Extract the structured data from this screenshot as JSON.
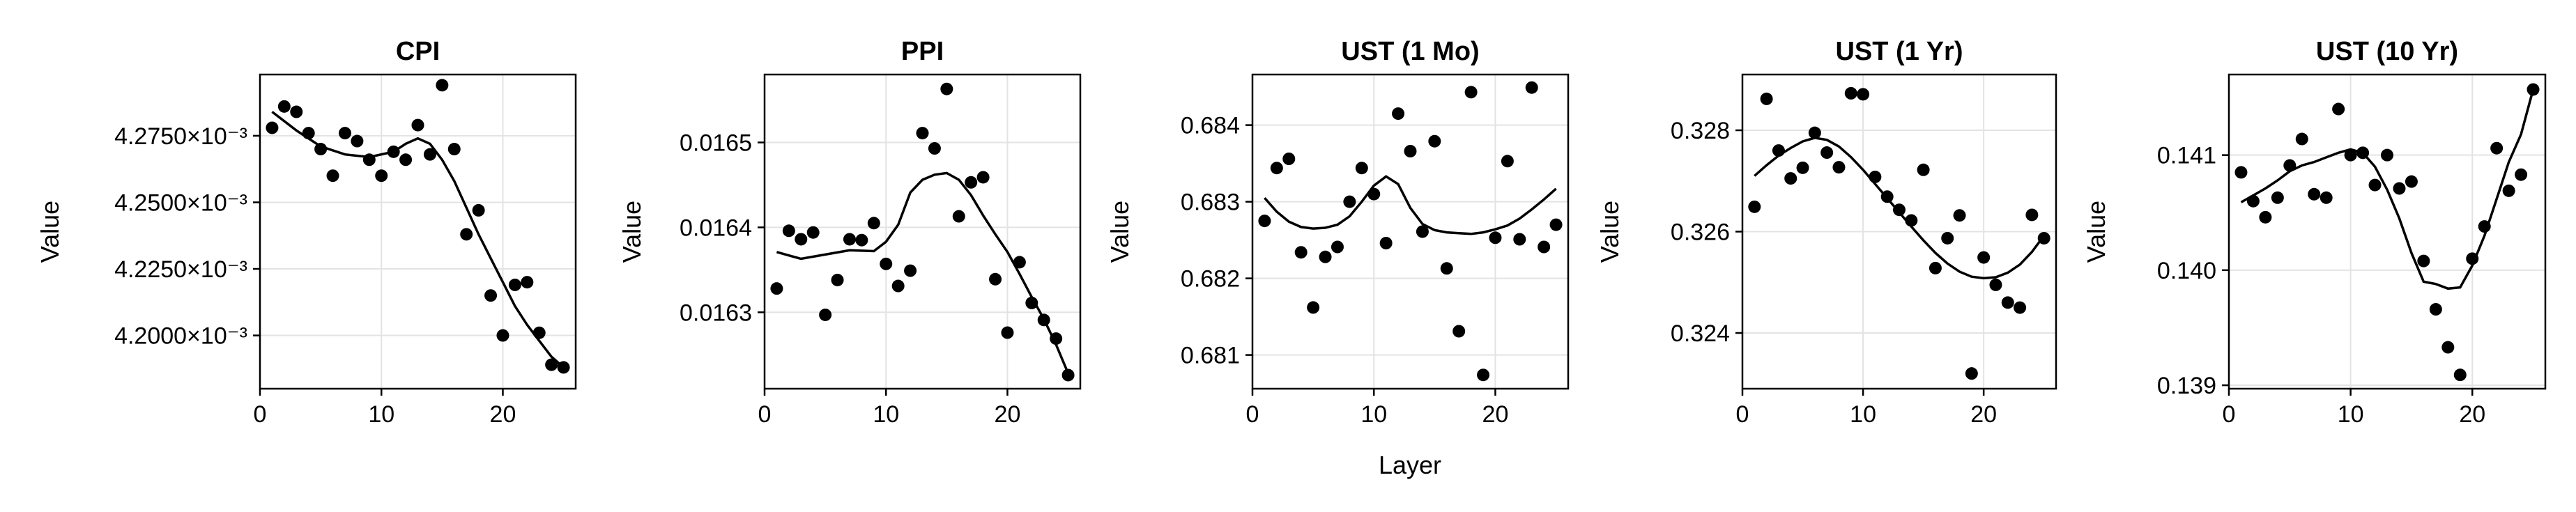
{
  "figure": {
    "xlabel": "Layer"
  },
  "chart_data": [
    {
      "type": "scatter",
      "title": "CPI",
      "ylabel": "Value",
      "xlim": [
        0,
        26
      ],
      "ylim": [
        0.00418,
        0.004298
      ],
      "xticks": [
        0,
        10,
        20
      ],
      "yticks": [
        {
          "value": 0.0042,
          "label": "4.2000×10⁻³"
        },
        {
          "value": 0.004225,
          "label": "4.2250×10⁻³"
        },
        {
          "value": 0.00425,
          "label": "4.2500×10⁻³"
        },
        {
          "value": 0.004275,
          "label": "4.2750×10⁻³"
        }
      ],
      "x": [
        1,
        2,
        3,
        4,
        5,
        6,
        7,
        8,
        9,
        10,
        11,
        12,
        13,
        14,
        15,
        16,
        17,
        18,
        19,
        20,
        21,
        22,
        23,
        24,
        25
      ],
      "y": [
        0.004278,
        0.004286,
        0.004284,
        0.004276,
        0.00427,
        0.00426,
        0.004276,
        0.004273,
        0.004266,
        0.00426,
        0.004269,
        0.004266,
        0.004279,
        0.004268,
        0.004294,
        0.00427,
        0.004238,
        0.004247,
        0.004215,
        0.0042,
        0.004219,
        0.00422,
        0.004201,
        0.004189,
        0.004188
      ],
      "trend_x": [
        1,
        3,
        5,
        7,
        9,
        11,
        12,
        13,
        14,
        15,
        16,
        17,
        18,
        19,
        20,
        21,
        22,
        23,
        24,
        25
      ],
      "trend_y": [
        0.004284,
        0.004277,
        0.004271,
        0.004268,
        0.004267,
        0.004269,
        0.004272,
        0.004274,
        0.004272,
        0.004266,
        0.004258,
        0.004248,
        0.004238,
        0.004229,
        0.00422,
        0.004211,
        0.004204,
        0.004198,
        0.004192,
        0.004188
      ]
    },
    {
      "type": "scatter",
      "title": "PPI",
      "ylabel": "Value",
      "xlim": [
        0,
        26
      ],
      "ylim": [
        0.01621,
        0.01658
      ],
      "xticks": [
        0,
        10,
        20
      ],
      "yticks": [
        {
          "value": 0.0163,
          "label": "0.0163"
        },
        {
          "value": 0.0164,
          "label": "0.0164"
        },
        {
          "value": 0.0165,
          "label": "0.0165"
        }
      ],
      "x": [
        1,
        2,
        3,
        4,
        5,
        6,
        7,
        8,
        9,
        10,
        11,
        12,
        13,
        14,
        15,
        16,
        17,
        18,
        19,
        20,
        21,
        22,
        23,
        24,
        25
      ],
      "y": [
        0.016328,
        0.016396,
        0.016386,
        0.016394,
        0.016297,
        0.016338,
        0.016386,
        0.016385,
        0.016405,
        0.016357,
        0.016331,
        0.016349,
        0.016511,
        0.016493,
        0.016563,
        0.016413,
        0.016453,
        0.016459,
        0.016339,
        0.016276,
        0.016359,
        0.016311,
        0.016291,
        0.016269,
        0.016226
      ],
      "trend_x": [
        1,
        3,
        5,
        7,
        9,
        10,
        11,
        12,
        13,
        14,
        15,
        16,
        17,
        18,
        19,
        20,
        21,
        22,
        23,
        24,
        25
      ],
      "trend_y": [
        0.016371,
        0.016363,
        0.016368,
        0.016373,
        0.016372,
        0.016383,
        0.016403,
        0.016441,
        0.016456,
        0.016462,
        0.016464,
        0.016456,
        0.016438,
        0.016414,
        0.016392,
        0.016371,
        0.016345,
        0.016318,
        0.016292,
        0.016262,
        0.016228
      ]
    },
    {
      "type": "scatter",
      "title": "UST (1 Mo)",
      "ylabel": "Value",
      "xlim": [
        0,
        26
      ],
      "ylim": [
        0.68056,
        0.68466
      ],
      "xticks": [
        0,
        10,
        20
      ],
      "yticks": [
        {
          "value": 0.681,
          "label": "0.681"
        },
        {
          "value": 0.682,
          "label": "0.682"
        },
        {
          "value": 0.683,
          "label": "0.683"
        },
        {
          "value": 0.684,
          "label": "0.684"
        }
      ],
      "x": [
        1,
        2,
        3,
        4,
        5,
        6,
        7,
        8,
        9,
        10,
        11,
        12,
        13,
        14,
        15,
        16,
        17,
        18,
        19,
        20,
        21,
        22,
        23,
        24,
        25
      ],
      "y": [
        0.68275,
        0.68344,
        0.68356,
        0.68234,
        0.68162,
        0.68228,
        0.68241,
        0.683,
        0.68344,
        0.6831,
        0.68246,
        0.68415,
        0.68366,
        0.68261,
        0.68379,
        0.68213,
        0.68131,
        0.68443,
        0.68074,
        0.68253,
        0.68353,
        0.68251,
        0.68449,
        0.68241,
        0.6827
      ],
      "trend_x": [
        1,
        2,
        3,
        4,
        5,
        6,
        7,
        8,
        9,
        10,
        11,
        12,
        13,
        14,
        15,
        16,
        17,
        18,
        19,
        20,
        21,
        22,
        23,
        24,
        25
      ],
      "trend_y": [
        0.68305,
        0.68287,
        0.68274,
        0.68267,
        0.68265,
        0.68266,
        0.6827,
        0.68281,
        0.683,
        0.68321,
        0.68333,
        0.68323,
        0.68292,
        0.68271,
        0.68263,
        0.6826,
        0.68259,
        0.68258,
        0.6826,
        0.68264,
        0.68269,
        0.68278,
        0.6829,
        0.68303,
        0.68317
      ]
    },
    {
      "type": "scatter",
      "title": "UST (1 Yr)",
      "ylabel": "Value",
      "xlim": [
        0,
        26
      ],
      "ylim": [
        0.3229,
        0.3291
      ],
      "xticks": [
        0,
        10,
        20
      ],
      "yticks": [
        {
          "value": 0.324,
          "label": "0.324"
        },
        {
          "value": 0.326,
          "label": "0.326"
        },
        {
          "value": 0.328,
          "label": "0.328"
        }
      ],
      "x": [
        1,
        2,
        3,
        4,
        5,
        6,
        7,
        8,
        9,
        10,
        11,
        12,
        13,
        14,
        15,
        16,
        17,
        18,
        19,
        20,
        21,
        22,
        23,
        24,
        25
      ],
      "y": [
        0.32649,
        0.32862,
        0.3276,
        0.32705,
        0.32726,
        0.32795,
        0.32756,
        0.32727,
        0.32873,
        0.32871,
        0.32708,
        0.32669,
        0.32643,
        0.32622,
        0.32722,
        0.32528,
        0.32587,
        0.32632,
        0.3232,
        0.32549,
        0.32495,
        0.3246,
        0.3245,
        0.32633,
        0.32587
      ],
      "trend_x": [
        1,
        2,
        3,
        4,
        5,
        6,
        7,
        8,
        9,
        10,
        11,
        12,
        13,
        14,
        15,
        16,
        17,
        18,
        19,
        20,
        21,
        22,
        23,
        24,
        25
      ],
      "trend_y": [
        0.3271,
        0.32731,
        0.3275,
        0.32765,
        0.32778,
        0.32785,
        0.32781,
        0.32768,
        0.32747,
        0.32722,
        0.32694,
        0.32666,
        0.32638,
        0.3261,
        0.32583,
        0.32558,
        0.32537,
        0.32521,
        0.32511,
        0.32508,
        0.3251,
        0.32519,
        0.32535,
        0.3256,
        0.32592
      ]
    },
    {
      "type": "scatter",
      "title": "UST (10 Yr)",
      "ylabel": "Value",
      "xlim": [
        0,
        26
      ],
      "ylim": [
        0.13897,
        0.1417
      ],
      "xticks": [
        0,
        10,
        20
      ],
      "yticks": [
        {
          "value": 0.139,
          "label": "0.139"
        },
        {
          "value": 0.14,
          "label": "0.140"
        },
        {
          "value": 0.141,
          "label": "0.141"
        }
      ],
      "x": [
        1,
        2,
        3,
        4,
        5,
        6,
        7,
        8,
        9,
        10,
        11,
        12,
        13,
        14,
        15,
        16,
        17,
        18,
        19,
        20,
        21,
        22,
        23,
        24,
        25
      ],
      "y": [
        0.14085,
        0.1406,
        0.14046,
        0.14063,
        0.14091,
        0.14114,
        0.14066,
        0.14063,
        0.1414,
        0.141,
        0.14102,
        0.14074,
        0.141,
        0.14071,
        0.14077,
        0.14008,
        0.13966,
        0.13933,
        0.13909,
        0.1401,
        0.14038,
        0.14106,
        0.14069,
        0.14083,
        0.14157
      ],
      "trend_x": [
        1,
        2,
        3,
        4,
        5,
        6,
        7,
        8,
        9,
        10,
        11,
        12,
        13,
        14,
        15,
        16,
        17,
        18,
        19,
        20,
        21,
        22,
        23,
        24,
        25
      ],
      "trend_y": [
        0.14059,
        0.14065,
        0.14071,
        0.14078,
        0.14086,
        0.14091,
        0.14094,
        0.14098,
        0.14102,
        0.14105,
        0.14102,
        0.1409,
        0.1407,
        0.14045,
        0.14015,
        0.1399,
        0.13988,
        0.13984,
        0.13985,
        0.14004,
        0.1403,
        0.14062,
        0.14094,
        0.14118,
        0.14157
      ]
    }
  ]
}
